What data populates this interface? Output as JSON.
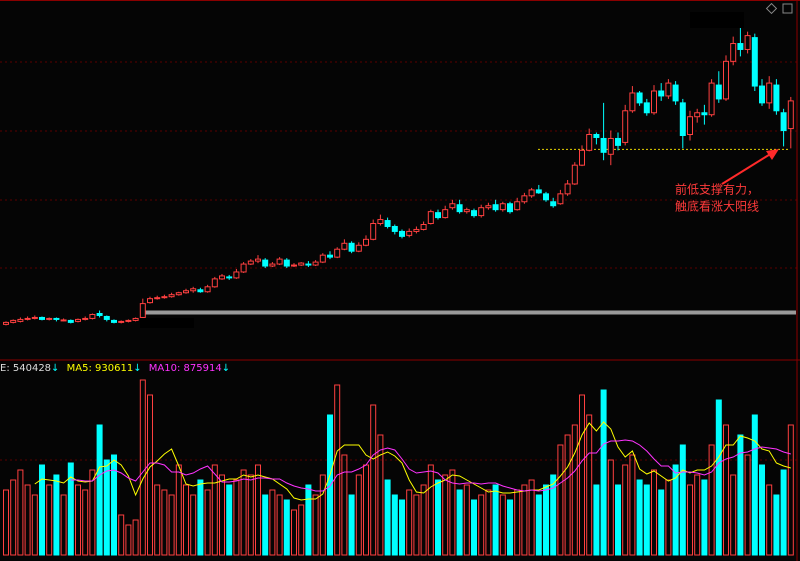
{
  "chart_data": {
    "type": "candlestick",
    "up_color": "#ff4040",
    "down_color": "#00ffff",
    "ylim": [
      0,
      360
    ],
    "candles": [
      [
        34,
        36,
        37,
        33
      ],
      [
        36,
        38,
        39,
        35
      ],
      [
        37,
        39,
        41,
        36
      ],
      [
        39,
        40,
        42,
        38
      ],
      [
        40,
        41,
        43,
        39
      ],
      [
        41,
        39,
        42,
        38
      ],
      [
        39,
        40,
        41,
        38
      ],
      [
        40,
        39,
        41,
        37
      ],
      [
        38,
        38.5,
        40,
        37
      ],
      [
        38,
        36,
        39,
        35
      ],
      [
        37,
        39,
        40,
        36
      ],
      [
        39,
        40,
        42,
        38
      ],
      [
        40,
        44,
        45,
        39
      ],
      [
        45,
        43,
        48,
        41
      ],
      [
        42,
        39,
        43,
        37
      ],
      [
        38,
        36,
        39,
        35
      ],
      [
        36,
        37,
        38,
        35
      ],
      [
        37,
        38,
        39,
        36
      ],
      [
        38,
        40,
        41,
        37
      ],
      [
        41,
        55,
        60,
        40
      ],
      [
        56,
        60,
        62,
        55
      ],
      [
        60,
        61,
        63,
        59
      ],
      [
        61,
        62,
        64,
        60
      ],
      [
        62,
        64,
        66,
        61
      ],
      [
        64,
        66,
        67,
        63
      ],
      [
        66,
        68,
        70,
        65
      ],
      [
        68,
        70,
        72,
        66
      ],
      [
        69,
        67,
        71,
        66
      ],
      [
        67,
        72,
        74,
        66
      ],
      [
        72,
        80,
        82,
        71
      ],
      [
        80,
        83,
        85,
        79
      ],
      [
        82,
        81,
        84,
        79
      ],
      [
        81,
        87,
        90,
        80
      ],
      [
        87,
        95,
        97,
        86
      ],
      [
        95,
        98,
        100,
        94
      ],
      [
        98,
        100,
        104,
        96
      ],
      [
        99,
        93,
        101,
        91
      ],
      [
        93,
        95,
        97,
        92
      ],
      [
        95,
        100,
        102,
        94
      ],
      [
        99,
        93,
        101,
        91
      ],
      [
        93,
        94,
        96,
        92
      ],
      [
        94,
        96,
        97,
        93
      ],
      [
        95,
        94,
        98,
        92
      ],
      [
        94,
        97,
        99,
        93
      ],
      [
        97,
        104,
        106,
        96
      ],
      [
        104,
        102,
        108,
        100
      ],
      [
        102,
        110,
        112,
        101
      ],
      [
        110,
        116,
        120,
        109
      ],
      [
        116,
        108,
        118,
        106
      ],
      [
        108,
        114,
        117,
        107
      ],
      [
        114,
        120,
        124,
        113
      ],
      [
        120,
        136,
        140,
        119
      ],
      [
        136,
        140,
        145,
        134
      ],
      [
        139,
        133,
        142,
        131
      ],
      [
        133,
        128,
        135,
        125
      ],
      [
        128,
        123,
        130,
        121
      ],
      [
        124,
        128,
        131,
        122
      ],
      [
        128,
        130,
        133,
        126
      ],
      [
        130,
        135,
        138,
        129
      ],
      [
        136,
        148,
        150,
        135
      ],
      [
        147,
        142,
        150,
        140
      ],
      [
        142,
        150,
        154,
        141
      ],
      [
        152,
        156,
        160,
        150
      ],
      [
        155,
        148,
        160,
        146
      ],
      [
        148,
        150,
        152,
        146
      ],
      [
        149,
        144,
        151,
        142
      ],
      [
        144,
        152,
        155,
        142
      ],
      [
        152,
        154,
        157,
        150
      ],
      [
        155,
        150,
        160,
        148
      ],
      [
        150,
        156,
        158,
        148
      ],
      [
        156,
        148,
        158,
        146
      ],
      [
        150,
        158,
        162,
        149
      ],
      [
        158,
        164,
        167,
        156
      ],
      [
        164,
        170,
        172,
        162
      ],
      [
        170,
        167,
        175,
        166
      ],
      [
        166,
        160,
        168,
        158
      ],
      [
        158,
        154,
        162,
        152
      ],
      [
        156,
        166,
        170,
        155
      ],
      [
        166,
        176,
        180,
        164
      ],
      [
        176,
        195,
        198,
        175
      ],
      [
        195,
        210,
        215,
        194
      ],
      [
        210,
        226,
        232,
        209
      ],
      [
        226,
        223,
        228,
        216
      ],
      [
        222,
        208,
        258,
        200
      ],
      [
        206,
        222,
        230,
        195
      ],
      [
        222,
        215,
        228,
        210
      ],
      [
        218,
        250,
        256,
        215
      ],
      [
        250,
        268,
        275,
        248
      ],
      [
        268,
        258,
        270,
        255
      ],
      [
        258,
        248,
        262,
        245
      ],
      [
        248,
        270,
        276,
        246
      ],
      [
        270,
        265,
        278,
        260
      ],
      [
        265,
        278,
        282,
        262
      ],
      [
        276,
        260,
        280,
        256
      ],
      [
        258,
        225,
        262,
        212
      ],
      [
        226,
        244,
        250,
        220
      ],
      [
        244,
        248,
        252,
        238
      ],
      [
        248,
        246,
        256,
        236
      ],
      [
        246,
        278,
        282,
        244
      ],
      [
        276,
        262,
        290,
        258
      ],
      [
        262,
        300,
        306,
        260
      ],
      [
        300,
        318,
        325,
        296
      ],
      [
        318,
        312,
        342,
        305
      ],
      [
        312,
        326,
        330,
        308
      ],
      [
        324,
        275,
        328,
        270
      ],
      [
        275,
        258,
        282,
        255
      ],
      [
        258,
        278,
        285,
        252
      ],
      [
        276,
        250,
        282,
        246
      ],
      [
        248,
        230,
        252,
        214
      ],
      [
        232,
        260,
        264,
        212
      ]
    ],
    "support_line": 211,
    "base_line": 46,
    "annotation": [
      "前低支撑有力，",
      "触底看涨大阳线"
    ],
    "volume_legend": {
      "volume": "E: 540428",
      "ma5": "MA5: 930611",
      "ma10": "MA10: 875914",
      "arrow": "↓"
    },
    "vlim": [
      0,
      193
    ],
    "volume": [
      65,
      75,
      85,
      70,
      60,
      90,
      70,
      80,
      60,
      92,
      70,
      65,
      85,
      130,
      95,
      100,
      40,
      30,
      35,
      175,
      160,
      70,
      65,
      60,
      90,
      70,
      60,
      75,
      65,
      90,
      80,
      70,
      75,
      85,
      80,
      90,
      60,
      65,
      60,
      55,
      45,
      50,
      70,
      60,
      80,
      140,
      170,
      100,
      60,
      80,
      90,
      150,
      120,
      75,
      60,
      55,
      65,
      60,
      70,
      90,
      75,
      80,
      85,
      65,
      70,
      55,
      60,
      65,
      70,
      60,
      55,
      65,
      70,
      75,
      60,
      70,
      80,
      110,
      120,
      130,
      160,
      140,
      70,
      165,
      95,
      70,
      90,
      100,
      75,
      70,
      85,
      65,
      75,
      90,
      110,
      70,
      80,
      75,
      110,
      155,
      130,
      80,
      120,
      100,
      140,
      90,
      70,
      60,
      85,
      130
    ],
    "ma5_color": "#ffff00",
    "ma10_color": "#ff33ff",
    "ma5": [
      null,
      null,
      null,
      null,
      71,
      76,
      75,
      74,
      72,
      78,
      74,
      73,
      74,
      88,
      89,
      95,
      90,
      79,
      60,
      76,
      88,
      94,
      101,
      106,
      89,
      71,
      69,
      71,
      72,
      72,
      74,
      76,
      76,
      80,
      78,
      80,
      78,
      76,
      71,
      66,
      57,
      55,
      56,
      56,
      61,
      80,
      104,
      110,
      110,
      110,
      100,
      96,
      100,
      103,
      99,
      92,
      75,
      63,
      62,
      68,
      72,
      75,
      80,
      79,
      75,
      71,
      67,
      63,
      64,
      62,
      62,
      63,
      64,
      65,
      65,
      68,
      71,
      79,
      88,
      102,
      120,
      132,
      124,
      133,
      126,
      108,
      98,
      104,
      86,
      81,
      84,
      79,
      74,
      77,
      85,
      82,
      85,
      85,
      89,
      98,
      110,
      110,
      119,
      117,
      114,
      106,
      104,
      92,
      89,
      87
    ],
    "ma10": [
      null,
      null,
      null,
      null,
      null,
      null,
      null,
      null,
      null,
      75,
      75,
      74,
      74,
      80,
      84,
      85,
      82,
      77,
      74,
      83,
      92,
      92,
      90,
      83,
      83,
      80,
      82,
      86,
      89,
      81,
      73,
      73,
      74,
      76,
      75,
      77,
      77,
      76,
      76,
      72,
      69,
      67,
      66,
      64,
      64,
      69,
      80,
      83,
      83,
      86,
      90,
      100,
      105,
      107,
      105,
      96,
      86,
      82,
      83,
      84,
      82,
      75,
      72,
      71,
      72,
      72,
      71,
      72,
      72,
      69,
      67,
      65,
      64,
      65,
      64,
      65,
      67,
      72,
      77,
      84,
      94,
      102,
      102,
      111,
      114,
      114,
      115,
      114,
      110,
      104,
      96,
      89,
      89,
      82,
      83,
      83,
      82,
      80,
      83,
      92,
      96,
      98,
      102,
      103,
      106,
      108,
      107,
      106,
      103,
      101
    ]
  }
}
